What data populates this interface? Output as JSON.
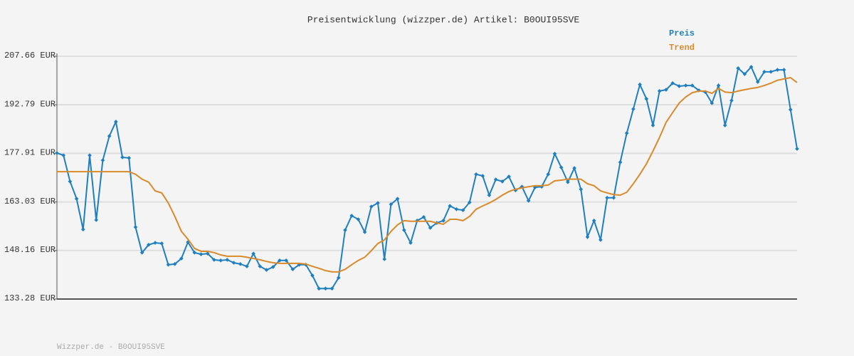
{
  "chart_data": {
    "type": "line",
    "title": "Preisentwicklung (wizzper.de) Artikel: B0OUI95SVE",
    "footer": "Wizzper.de - B0OUI95SVE",
    "ylim": [
      133.28,
      207.66
    ],
    "yticks": [
      {
        "value": 133.28,
        "label": "133.28 EUR"
      },
      {
        "value": 148.16,
        "label": "148.16 EUR"
      },
      {
        "value": 163.03,
        "label": "163.03 EUR"
      },
      {
        "value": 177.91,
        "label": "177.91 EUR"
      },
      {
        "value": 192.79,
        "label": "192.79 EUR"
      },
      {
        "value": 207.66,
        "label": "207.66 EUR"
      }
    ],
    "grid": true,
    "legend": "top-right",
    "series": [
      {
        "name": "Preis",
        "color": "#1f7fbf",
        "markers": true,
        "values": [
          178.0,
          177.3,
          169.3,
          164.0,
          154.6,
          177.3,
          157.5,
          175.8,
          183.2,
          187.6,
          176.7,
          176.5,
          155.3,
          147.5,
          149.9,
          150.5,
          150.3,
          143.8,
          144.0,
          145.7,
          150.7,
          147.5,
          147.0,
          147.2,
          145.3,
          145.1,
          145.3,
          144.4,
          144.0,
          143.3,
          147.2,
          143.3,
          142.2,
          143.1,
          145.1,
          145.1,
          142.4,
          143.8,
          143.8,
          140.5,
          136.5,
          136.5,
          136.5,
          139.8,
          154.4,
          158.8,
          157.7,
          153.8,
          161.6,
          162.7,
          145.5,
          162.3,
          164.0,
          154.4,
          150.5,
          157.3,
          158.4,
          155.1,
          156.6,
          157.3,
          161.8,
          160.8,
          160.5,
          162.9,
          171.5,
          171.0,
          165.1,
          169.9,
          169.3,
          170.8,
          166.6,
          167.7,
          163.4,
          167.5,
          167.7,
          171.5,
          177.8,
          173.6,
          169.1,
          173.4,
          166.9,
          152.3,
          157.3,
          151.4,
          164.3,
          164.3,
          175.2,
          184.1,
          191.5,
          199.0,
          194.6,
          186.5,
          197.0,
          197.4,
          199.4,
          198.5,
          198.7,
          198.7,
          197.2,
          196.7,
          193.3,
          198.7,
          186.5,
          194.1,
          204.0,
          202.2,
          204.4,
          199.8,
          202.9,
          202.9,
          203.5,
          203.5,
          191.3,
          179.3
        ]
      },
      {
        "name": "Trend",
        "color": "#d98a2a",
        "markers": false,
        "values": [
          172.3,
          172.3,
          172.3,
          172.3,
          172.3,
          172.3,
          172.3,
          172.3,
          172.3,
          172.3,
          172.3,
          172.3,
          171.5,
          170.0,
          169.1,
          166.4,
          165.8,
          162.7,
          158.6,
          154.0,
          151.6,
          148.8,
          147.9,
          147.9,
          147.5,
          146.8,
          146.4,
          146.4,
          146.4,
          146.1,
          145.7,
          145.3,
          144.8,
          144.4,
          144.2,
          144.2,
          144.2,
          144.2,
          144.0,
          143.3,
          142.7,
          142.0,
          141.6,
          141.6,
          142.4,
          143.8,
          145.1,
          146.1,
          148.1,
          150.3,
          151.4,
          154.0,
          156.0,
          157.3,
          157.1,
          157.1,
          157.1,
          157.1,
          156.6,
          156.2,
          157.7,
          157.7,
          157.3,
          158.6,
          160.8,
          161.8,
          162.7,
          163.8,
          165.1,
          166.2,
          166.9,
          167.3,
          167.7,
          168.0,
          168.0,
          168.2,
          169.5,
          169.7,
          170.0,
          170.0,
          170.0,
          168.6,
          168.0,
          166.4,
          165.8,
          165.3,
          165.1,
          166.0,
          168.6,
          171.5,
          174.7,
          178.6,
          182.8,
          187.4,
          190.4,
          193.3,
          195.2,
          196.5,
          197.0,
          197.0,
          196.3,
          197.8,
          196.7,
          196.5,
          197.0,
          197.4,
          197.8,
          198.1,
          198.7,
          199.4,
          200.3,
          200.7,
          201.1,
          199.6
        ]
      }
    ]
  }
}
